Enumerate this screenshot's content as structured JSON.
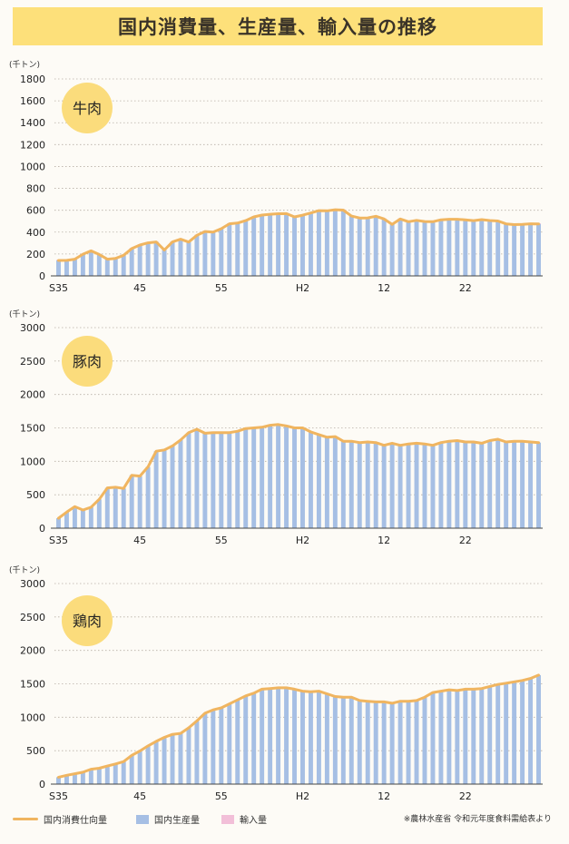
{
  "title": "国内消費量、生産量、輸入量の推移",
  "unit": "(千トン)",
  "colors": {
    "consumption": "#f0b560",
    "production": "#a6bfe4",
    "import": "#f2bfd8",
    "badge": "#fbdc7c",
    "grid": "#b8b0a6"
  },
  "legend": {
    "consumption": "国内消費仕向量",
    "production": "国内生産量",
    "import": "輸入量"
  },
  "source": "※農林水産省 令和元年度食料需給表より",
  "chart_data": [
    {
      "type": "bar",
      "title": "牛肉",
      "ylim": [
        0,
        1800
      ],
      "yticks": [
        0,
        200,
        400,
        600,
        800,
        1000,
        1200,
        1400,
        1600,
        1800
      ],
      "xticks": [
        {
          "i": 0,
          "label": "S35"
        },
        {
          "i": 10,
          "label": "45"
        },
        {
          "i": 20,
          "label": "55"
        },
        {
          "i": 30,
          "label": "H2"
        },
        {
          "i": 40,
          "label": "12"
        },
        {
          "i": 50,
          "label": "22"
        }
      ],
      "series": [
        {
          "name": "国内生産量",
          "values": [
            141,
            142,
            153,
            198,
            229,
            196,
            153,
            160,
            188,
            250,
            282,
            302,
            310,
            236,
            310,
            335,
            309,
            371,
            406,
            400,
            431,
            476,
            483,
            505,
            539,
            556,
            563,
            568,
            569,
            539,
            555,
            575,
            596,
            595,
            605,
            601,
            547,
            529,
            530,
            545,
            521,
            470,
            520,
            495,
            508,
            497,
            495,
            513,
            518,
            518,
            512,
            505,
            514,
            506,
            502,
            475,
            469,
            471,
            476,
            475
          ]
        },
        {
          "name": "輸入量",
          "values": [
            6,
            6,
            6,
            6,
            6,
            6,
            6,
            6,
            6,
            6,
            6,
            6,
            6,
            6,
            6,
            6,
            6,
            6,
            6,
            6,
            6,
            6,
            6,
            6,
            6,
            6,
            6,
            6,
            6,
            6,
            6,
            6,
            6,
            6,
            6,
            6,
            6,
            6,
            6,
            6,
            6,
            6,
            6,
            6,
            6,
            6,
            6,
            6,
            6,
            6,
            6,
            6,
            6,
            6,
            6,
            6,
            6,
            6,
            6,
            6
          ]
        },
        {
          "name": "国内消費仕向量",
          "values": [
            141,
            142,
            153,
            198,
            229,
            196,
            153,
            160,
            188,
            250,
            282,
            302,
            310,
            236,
            310,
            335,
            309,
            371,
            406,
            400,
            431,
            476,
            483,
            505,
            539,
            556,
            563,
            568,
            569,
            539,
            555,
            575,
            596,
            595,
            605,
            601,
            547,
            529,
            530,
            545,
            521,
            470,
            520,
            495,
            508,
            497,
            495,
            513,
            518,
            518,
            512,
            505,
            514,
            506,
            502,
            475,
            469,
            471,
            476,
            475
          ]
        }
      ]
    },
    {
      "type": "bar",
      "title": "豚肉",
      "ylim": [
        0,
        3000
      ],
      "yticks": [
        0,
        500,
        1000,
        1500,
        2000,
        2500,
        3000
      ],
      "xticks": [
        {
          "i": 0,
          "label": "S35"
        },
        {
          "i": 10,
          "label": "45"
        },
        {
          "i": 20,
          "label": "55"
        },
        {
          "i": 30,
          "label": "H2"
        },
        {
          "i": 40,
          "label": "12"
        },
        {
          "i": 50,
          "label": "22"
        }
      ],
      "series": [
        {
          "name": "国内生産量",
          "values": [
            149,
            240,
            322,
            271,
            314,
            431,
            603,
            612,
            594,
            792,
            779,
            917,
            1151,
            1170,
            1230,
            1320,
            1430,
            1480,
            1420,
            1430,
            1430,
            1430,
            1450,
            1490,
            1500,
            1510,
            1540,
            1550,
            1530,
            1500,
            1500,
            1440,
            1400,
            1360,
            1370,
            1300,
            1300,
            1280,
            1290,
            1280,
            1240,
            1270,
            1240,
            1260,
            1270,
            1260,
            1240,
            1280,
            1300,
            1310,
            1290,
            1290,
            1270,
            1310,
            1330,
            1290,
            1300,
            1300,
            1290,
            1280
          ]
        },
        {
          "name": "輸入量",
          "values": [
            0,
            0,
            0,
            0,
            0,
            0,
            0,
            0,
            0,
            0,
            0,
            0,
            0,
            0,
            0,
            0,
            0,
            0,
            0,
            0,
            0,
            0,
            0,
            0,
            0,
            0,
            0,
            0,
            0,
            0,
            0,
            0,
            0,
            0,
            0,
            0,
            0,
            0,
            0,
            0,
            0,
            0,
            0,
            0,
            0,
            0,
            0,
            0,
            0,
            0,
            0,
            0,
            0,
            0,
            0,
            0,
            0,
            0,
            0,
            0
          ]
        },
        {
          "name": "国内消費仕向量",
          "values": [
            149,
            240,
            322,
            271,
            314,
            431,
            603,
            612,
            594,
            792,
            779,
            917,
            1151,
            1170,
            1230,
            1320,
            1430,
            1480,
            1420,
            1430,
            1430,
            1430,
            1450,
            1490,
            1500,
            1510,
            1540,
            1550,
            1530,
            1500,
            1500,
            1440,
            1400,
            1360,
            1370,
            1300,
            1300,
            1280,
            1290,
            1280,
            1240,
            1270,
            1240,
            1260,
            1270,
            1260,
            1240,
            1280,
            1300,
            1310,
            1290,
            1290,
            1270,
            1310,
            1330,
            1290,
            1300,
            1300,
            1290,
            1280
          ]
        }
      ]
    },
    {
      "type": "bar",
      "title": "鶏肉",
      "ylim": [
        0,
        3000
      ],
      "yticks": [
        0,
        500,
        1000,
        1500,
        2000,
        2500,
        3000
      ],
      "xticks": [
        {
          "i": 0,
          "label": "S35"
        },
        {
          "i": 10,
          "label": "45"
        },
        {
          "i": 20,
          "label": "55"
        },
        {
          "i": 30,
          "label": "H2"
        },
        {
          "i": 40,
          "label": "12"
        },
        {
          "i": 50,
          "label": "22"
        }
      ],
      "series": [
        {
          "name": "国内生産量",
          "values": [
            103,
            132,
            155,
            178,
            222,
            238,
            270,
            302,
            336,
            430,
            496,
            571,
            640,
            699,
            744,
            759,
            841,
            945,
            1060,
            1110,
            1140,
            1200,
            1260,
            1320,
            1360,
            1420,
            1430,
            1440,
            1440,
            1420,
            1390,
            1380,
            1390,
            1350,
            1310,
            1300,
            1300,
            1250,
            1240,
            1230,
            1230,
            1210,
            1240,
            1240,
            1250,
            1300,
            1370,
            1390,
            1410,
            1400,
            1420,
            1420,
            1430,
            1460,
            1490,
            1510,
            1530,
            1550,
            1580,
            1630
          ]
        },
        {
          "name": "輸入量",
          "values": [
            0,
            0,
            0,
            0,
            0,
            0,
            0,
            0,
            0,
            0,
            0,
            0,
            0,
            0,
            0,
            0,
            0,
            0,
            0,
            0,
            0,
            0,
            0,
            0,
            0,
            0,
            0,
            0,
            0,
            0,
            0,
            0,
            0,
            0,
            0,
            0,
            0,
            0,
            0,
            0,
            0,
            0,
            0,
            0,
            0,
            0,
            0,
            0,
            0,
            0,
            0,
            0,
            0,
            0,
            0,
            0,
            0,
            0,
            0,
            0
          ]
        },
        {
          "name": "国内消費仕向量",
          "values": [
            103,
            132,
            155,
            178,
            222,
            238,
            270,
            302,
            336,
            430,
            496,
            571,
            640,
            699,
            744,
            759,
            841,
            945,
            1060,
            1110,
            1140,
            1200,
            1260,
            1320,
            1360,
            1420,
            1430,
            1440,
            1440,
            1420,
            1390,
            1380,
            1390,
            1350,
            1310,
            1300,
            1300,
            1250,
            1240,
            1230,
            1230,
            1210,
            1240,
            1240,
            1250,
            1300,
            1370,
            1390,
            1410,
            1400,
            1420,
            1420,
            1430,
            1460,
            1490,
            1510,
            1530,
            1550,
            1580,
            1630
          ]
        }
      ]
    }
  ]
}
